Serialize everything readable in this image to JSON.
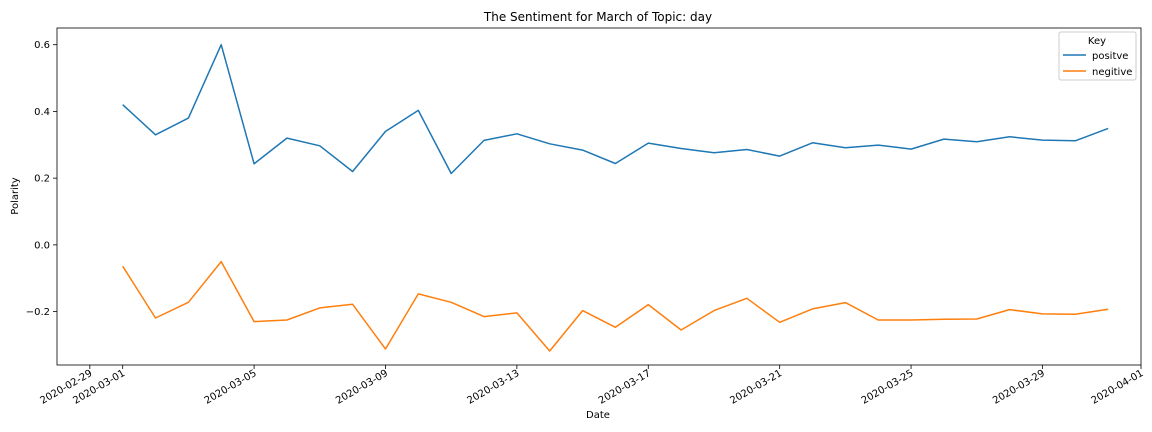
{
  "chart_data": {
    "type": "line",
    "title": "The Sentiment for March of Topic: day",
    "xlabel": "Date",
    "ylabel": "Polarity",
    "xlim": [
      "2020-02-28",
      "2020-04-01"
    ],
    "ylim": [
      -0.36,
      0.65
    ],
    "x_ticks": [
      "2020-02-29",
      "2020-03-01",
      "2020-03-05",
      "2020-03-09",
      "2020-03-13",
      "2020-03-17",
      "2020-03-21",
      "2020-03-25",
      "2020-03-29",
      "2020-04-01"
    ],
    "y_ticks": [
      "0.6",
      "0.4",
      "0.2",
      "0.0",
      "−0.2"
    ],
    "y_tick_values": [
      0.6,
      0.4,
      0.2,
      0.0,
      -0.2
    ],
    "grid": false,
    "legend": {
      "title": "Key",
      "placement": "top-right"
    },
    "x": [
      "2020-03-01",
      "2020-03-02",
      "2020-03-03",
      "2020-03-04",
      "2020-03-05",
      "2020-03-06",
      "2020-03-07",
      "2020-03-08",
      "2020-03-09",
      "2020-03-10",
      "2020-03-11",
      "2020-03-12",
      "2020-03-13",
      "2020-03-14",
      "2020-03-15",
      "2020-03-16",
      "2020-03-17",
      "2020-03-18",
      "2020-03-19",
      "2020-03-20",
      "2020-03-21",
      "2020-03-22",
      "2020-03-23",
      "2020-03-24",
      "2020-03-25",
      "2020-03-26",
      "2020-03-27",
      "2020-03-28",
      "2020-03-29",
      "2020-03-30",
      "2020-03-31"
    ],
    "series": [
      {
        "name": "positve",
        "color": "#1f77b4",
        "values": [
          0.42,
          0.33,
          0.38,
          0.6,
          0.243,
          0.32,
          0.297,
          0.22,
          0.34,
          0.403,
          0.214,
          0.313,
          0.333,
          0.303,
          0.284,
          0.244,
          0.305,
          0.289,
          0.276,
          0.286,
          0.266,
          0.306,
          0.291,
          0.299,
          0.287,
          0.317,
          0.309,
          0.324,
          0.314,
          0.312,
          0.349
        ]
      },
      {
        "name": "negitive",
        "color": "#ff7f0e",
        "values": [
          -0.064,
          -0.219,
          -0.172,
          -0.05,
          -0.23,
          -0.225,
          -0.189,
          -0.178,
          -0.312,
          -0.147,
          -0.172,
          -0.215,
          -0.204,
          -0.318,
          -0.197,
          -0.247,
          -0.179,
          -0.255,
          -0.197,
          -0.16,
          -0.232,
          -0.192,
          -0.173,
          -0.225,
          -0.225,
          -0.223,
          -0.222,
          -0.194,
          -0.207,
          -0.208,
          -0.193
        ]
      }
    ]
  }
}
